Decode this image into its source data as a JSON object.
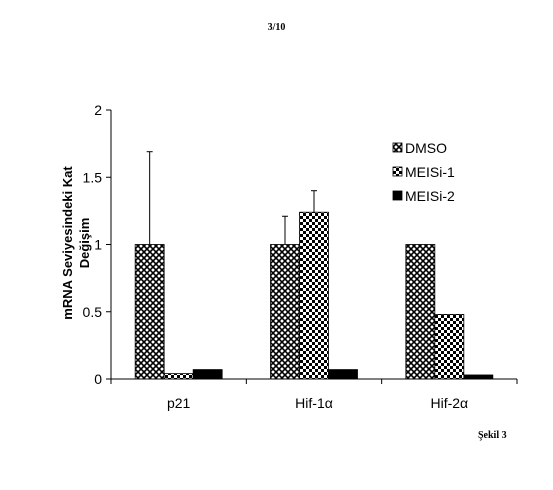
{
  "page": {
    "number": "3/10",
    "figure_label": "Şekil 3"
  },
  "chart_data": {
    "type": "bar",
    "categories": [
      "p21",
      "Hif-1α",
      "Hif-2α"
    ],
    "series": [
      {
        "name": "DMSO",
        "values": [
          1.0,
          1.0,
          1.0
        ],
        "errors": [
          0.69,
          0.21,
          0.0
        ],
        "pattern": "crosshatch"
      },
      {
        "name": "MEISi-1",
        "values": [
          0.04,
          1.24,
          0.48
        ],
        "errors": [
          0.0,
          0.16,
          0.0
        ],
        "pattern": "checker"
      },
      {
        "name": "MEISi-2",
        "values": [
          0.07,
          0.07,
          0.03
        ],
        "errors": [
          0.0,
          0.0,
          0.0
        ],
        "pattern": "solid"
      }
    ],
    "ylabel_lines": [
      "mRNA Seviyesindeki Kat",
      "Değişim"
    ],
    "xlabel": "",
    "ylim": [
      0,
      2
    ],
    "yticks": [
      "0",
      "0.5",
      "1",
      "1.5",
      "2"
    ],
    "legend_position": "top-right",
    "grid": false
  }
}
